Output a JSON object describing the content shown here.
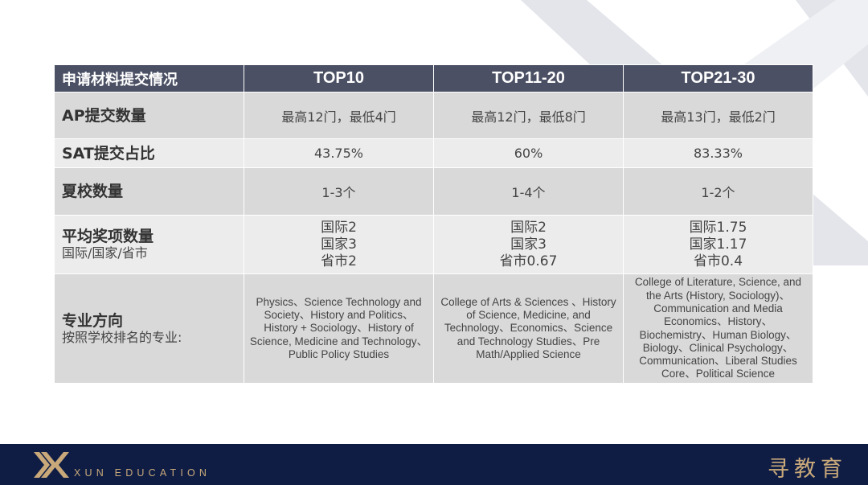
{
  "colors": {
    "header_bg": "#4b5064",
    "row_dark": "#d9d9d9",
    "row_light": "#ececec",
    "footer_bg": "#0f1d45",
    "brand_gold": "#c9a97a"
  },
  "table": {
    "header": [
      "申请材料提交情况",
      "TOP10",
      "TOP11-20",
      "TOP21-30"
    ],
    "rows": [
      {
        "label": "AP提交数量",
        "sublabel": "",
        "cells": [
          "最高12门，最低4门",
          "最高12门，最低8门",
          "最高13门，最低2门"
        ]
      },
      {
        "label": "SAT提交占比",
        "sublabel": "",
        "cells": [
          "43.75%",
          "60%",
          "83.33%"
        ]
      },
      {
        "label": "夏校数量",
        "sublabel": "",
        "cells": [
          "1-3个",
          "1-4个",
          "1-2个"
        ]
      },
      {
        "label": "平均奖项数量",
        "sublabel": "国际/国家/省市",
        "cells": [
          [
            "国际2",
            "国家3",
            "省市2"
          ],
          [
            "国际2",
            "国家3",
            "省市0.67"
          ],
          [
            "国际1.75",
            "国家1.17",
            "省市0.4"
          ]
        ]
      },
      {
        "label": "专业方向",
        "sublabel": "按照学校排名的专业:",
        "cells": [
          "Physics、Science Technology and Society、History and Politics、History + Sociology、History of Science, Medicine and Technology、Public Policy Studies",
          "College of Arts & Sciences 、History of Science, Medicine, and Technology、Economics、Science and Technology Studies、Pre Math/Applied Science",
          "College of Literature, Science, and the Arts (History, Sociology)、Communication and Media Economics、History、Biochemistry、Human Biology、Biology、Clinical Psychology、Communication、Liberal Studies Core、Political Science"
        ]
      }
    ]
  },
  "footer": {
    "brand_en": "XUN EDUCATION",
    "brand_cn": "寻教育",
    "logo_icon": "xun-logo-icon"
  }
}
